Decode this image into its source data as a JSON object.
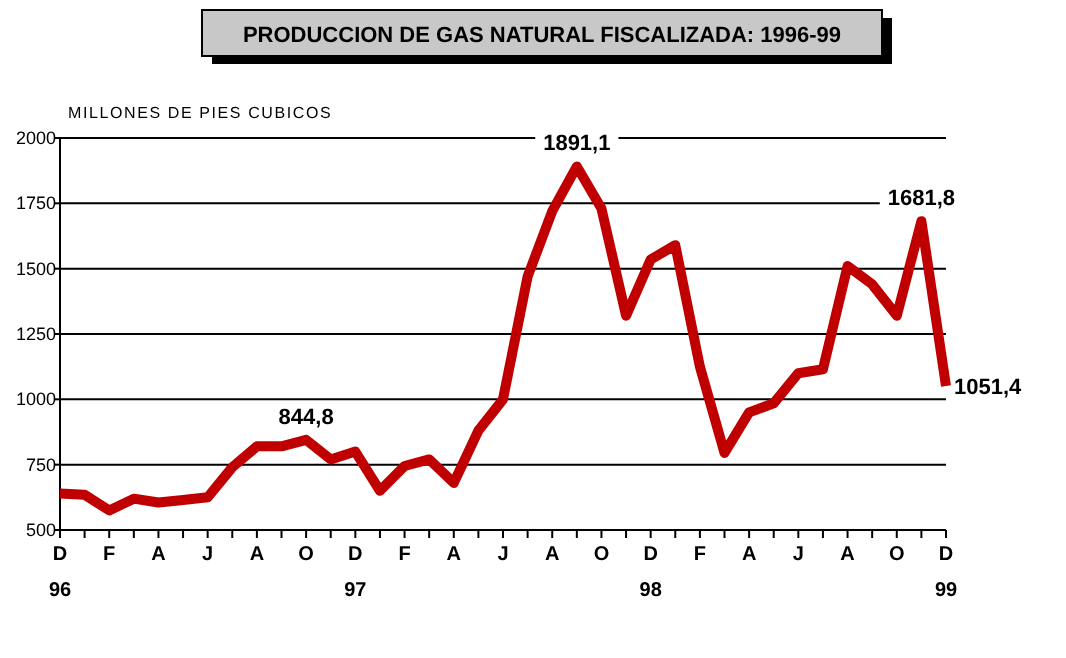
{
  "chart_data": {
    "type": "line",
    "title": "PRODUCCION DE GAS NATURAL FISCALIZADA: 1996-99",
    "ylabel": "MILLONES DE PIES CUBICOS",
    "categories": [
      "D\n96",
      null,
      "F",
      null,
      "A",
      null,
      "J",
      null,
      "A",
      null,
      "O",
      null,
      "D\n97",
      null,
      "F",
      null,
      "A",
      null,
      "J",
      null,
      "A",
      null,
      "O",
      null,
      "D\n98",
      null,
      "F",
      null,
      "A",
      null,
      "J",
      null,
      "A",
      null,
      "O",
      null,
      "D\n99"
    ],
    "series": [
      {
        "color": "#c00000",
        "values": [
          640,
          635,
          575,
          620,
          605,
          615,
          625,
          740,
          820,
          820,
          844.8,
          770,
          800,
          650,
          745,
          770,
          680,
          880,
          1000,
          1470,
          1720,
          1891.1,
          1730,
          1320,
          1535,
          1590,
          1125,
          795,
          950,
          985,
          1100,
          1115,
          1510,
          1440,
          1320,
          1681.8,
          1051.4
        ],
        "value_labels": [
          null,
          null,
          null,
          null,
          null,
          null,
          null,
          null,
          null,
          null,
          "844,8",
          null,
          null,
          null,
          null,
          null,
          null,
          null,
          null,
          null,
          null,
          "1891,1",
          null,
          null,
          null,
          null,
          null,
          null,
          null,
          null,
          null,
          null,
          null,
          null,
          null,
          "1681,8",
          "1051,4"
        ]
      }
    ],
    "ylim": [
      500,
      2000
    ],
    "yticks": [
      500,
      750,
      1000,
      1250,
      1500,
      1750,
      2000
    ],
    "grid": "y",
    "marker": "none",
    "line_style": "solid"
  }
}
